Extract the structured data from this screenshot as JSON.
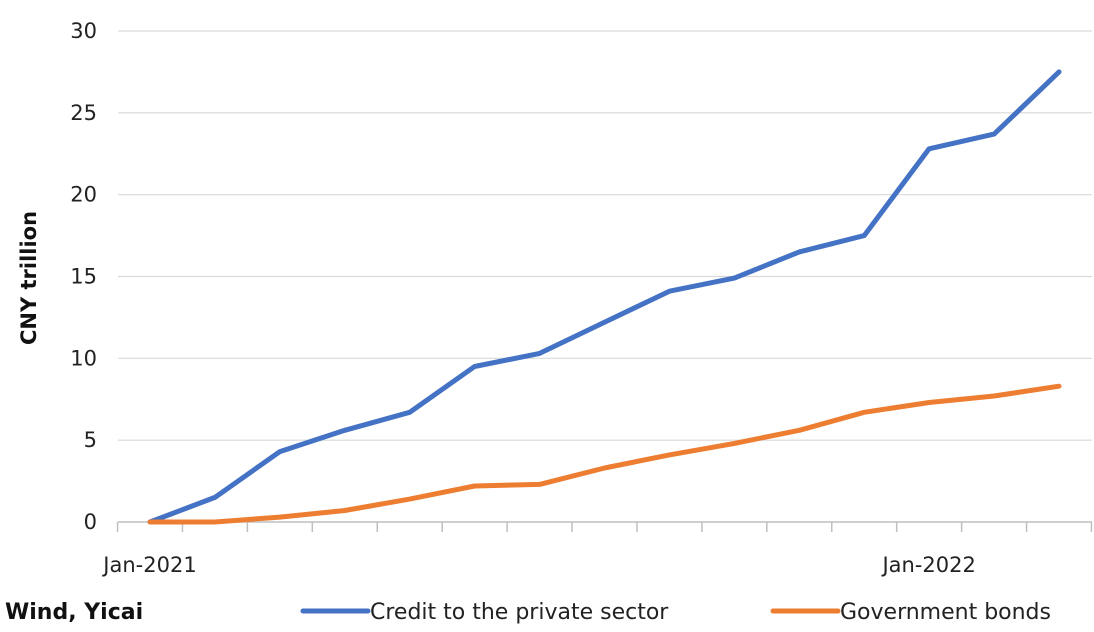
{
  "chart_data": {
    "type": "line",
    "title": "",
    "xlabel": "",
    "ylabel": "CNY trillion",
    "x": [
      "Jan-2021",
      "Feb-2021",
      "Mar-2021",
      "Apr-2021",
      "May-2021",
      "Jun-2021",
      "Jul-2021",
      "Aug-2021",
      "Sep-2021",
      "Oct-2021",
      "Nov-2021",
      "Dec-2021",
      "Jan-2022",
      "Feb-2022",
      "Mar-2022"
    ],
    "x_tick_labels": [
      "Jan-2021",
      "Jan-2022"
    ],
    "yticks": [
      "0",
      "5",
      "10",
      "15",
      "20",
      "25",
      "30"
    ],
    "ylim": [
      0,
      30
    ],
    "grid": "horizontal",
    "legend_position": "bottom-right",
    "series": [
      {
        "name": "Credit to the private sector",
        "color": "#4472C4",
        "values": [
          0,
          1.5,
          4.3,
          5.6,
          6.7,
          9.5,
          10.3,
          12.2,
          14.1,
          14.9,
          16.5,
          17.5,
          22.8,
          23.7,
          27.5
        ]
      },
      {
        "name": "Government bonds",
        "color": "#ED7D31",
        "values": [
          0,
          0.0,
          0.3,
          0.7,
          1.4,
          2.2,
          2.3,
          3.3,
          4.1,
          4.8,
          5.6,
          6.7,
          7.3,
          7.7,
          8.3
        ]
      }
    ]
  },
  "source": "Wind, Yicai"
}
